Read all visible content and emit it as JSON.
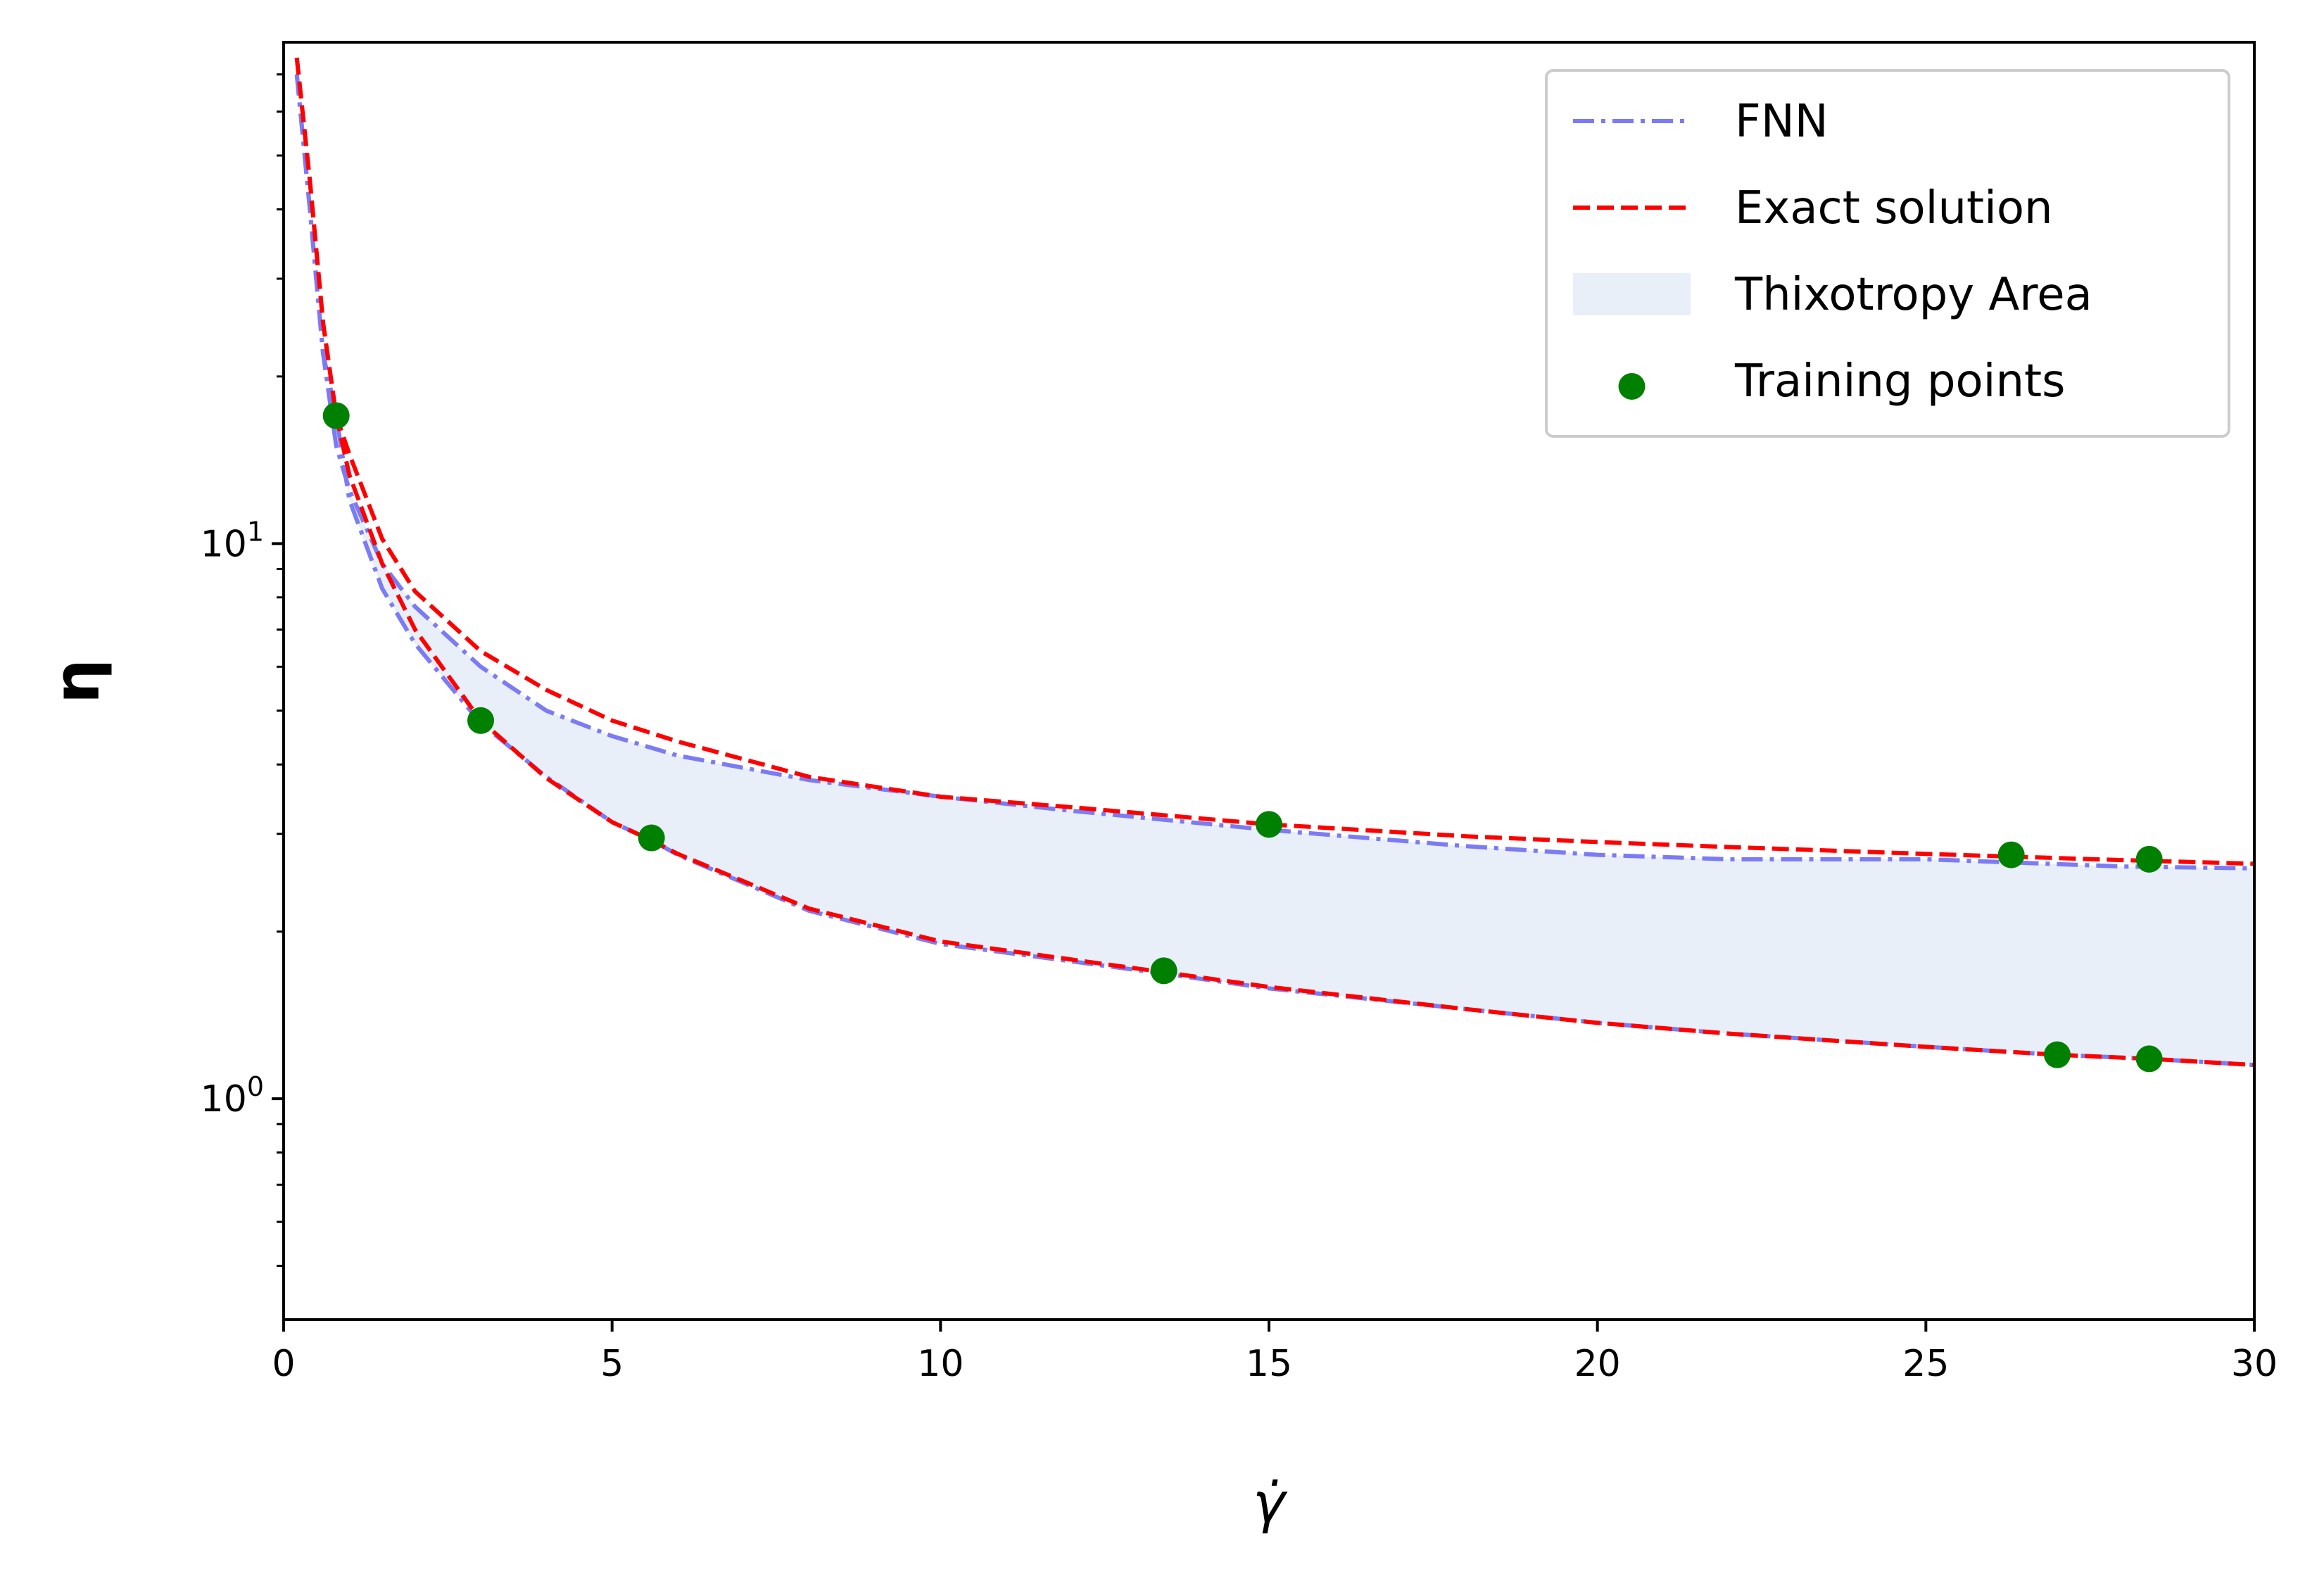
{
  "chart_data": {
    "type": "line",
    "xlabel": "γ̇",
    "ylabel": "η",
    "xlim": [
      0,
      30
    ],
    "ylim": [
      0.4,
      80
    ],
    "yscale": "log",
    "x_ticks": [
      "0",
      "5",
      "10",
      "15",
      "20",
      "25",
      "30"
    ],
    "y_ticks": [
      {
        "base": "10",
        "exp": "1"
      },
      {
        "base": "10",
        "exp": "0"
      }
    ],
    "grid": false,
    "legend_position": "top-right",
    "legend": [
      {
        "label": "FNN",
        "style": "dashdot",
        "color": "#7b7bf5"
      },
      {
        "label": "Exact solution",
        "style": "dashed",
        "color": "#ff0000"
      },
      {
        "label": "Thixotropy Area",
        "style": "fill",
        "color": "#e8eff8"
      },
      {
        "label": "Training points",
        "style": "marker",
        "color": "#008000"
      }
    ],
    "series": [
      {
        "name": "FNN",
        "branch": "upper",
        "x": [
          0.2,
          0.4,
          0.6,
          0.8,
          1.0,
          1.5,
          2,
          3,
          4,
          5,
          6,
          8,
          10,
          12,
          15,
          18,
          20,
          22,
          25,
          28,
          30
        ],
        "y": [
          70,
          40,
          22,
          15,
          12.5,
          9.2,
          7.7,
          6.0,
          5.0,
          4.5,
          4.15,
          3.75,
          3.5,
          3.3,
          3.05,
          2.85,
          2.75,
          2.7,
          2.7,
          2.62,
          2.6
        ]
      },
      {
        "name": "FNN",
        "branch": "lower",
        "x": [
          0.2,
          0.4,
          0.6,
          0.8,
          1.0,
          1.5,
          2,
          3,
          4,
          5,
          5.6,
          6,
          8,
          10,
          13.4,
          15,
          18,
          20,
          22,
          25,
          27,
          28.4,
          30
        ],
        "y": [
          70,
          40,
          22,
          17,
          12,
          8.3,
          6.6,
          4.75,
          3.8,
          3.15,
          2.92,
          2.75,
          2.18,
          1.9,
          1.68,
          1.58,
          1.45,
          1.37,
          1.31,
          1.24,
          1.2,
          1.18,
          1.15
        ]
      },
      {
        "name": "Exact solution",
        "branch": "upper",
        "x": [
          0.2,
          0.4,
          0.6,
          0.8,
          1.0,
          1.5,
          2,
          3,
          4,
          5,
          6,
          8,
          10,
          12,
          15,
          18,
          20,
          22,
          25,
          28,
          30
        ],
        "y": [
          75,
          45,
          25,
          17,
          14.5,
          10.2,
          8.2,
          6.4,
          5.45,
          4.8,
          4.4,
          3.8,
          3.5,
          3.35,
          3.12,
          2.97,
          2.9,
          2.84,
          2.76,
          2.69,
          2.65
        ]
      },
      {
        "name": "Exact solution",
        "branch": "lower",
        "x": [
          0.2,
          0.4,
          0.6,
          0.8,
          1.0,
          1.5,
          2,
          3,
          4,
          5,
          5.6,
          6,
          8,
          10,
          13.4,
          15,
          18,
          20,
          22,
          25,
          27,
          28.4,
          30
        ],
        "y": [
          75,
          45,
          25,
          17,
          13.3,
          9.2,
          7.0,
          4.8,
          3.78,
          3.15,
          2.92,
          2.76,
          2.2,
          1.92,
          1.69,
          1.59,
          1.45,
          1.37,
          1.31,
          1.24,
          1.2,
          1.18,
          1.15
        ]
      }
    ],
    "fill_between": {
      "name": "Thixotropy Area",
      "x": [
        0.8,
        1.0,
        1.5,
        2,
        3,
        4,
        5,
        6,
        8,
        10,
        12,
        15,
        18,
        20,
        22,
        25,
        28,
        30
      ],
      "upper": [
        17,
        12.5,
        9.2,
        7.7,
        6.0,
        5.0,
        4.5,
        4.15,
        3.75,
        3.5,
        3.3,
        3.05,
        2.85,
        2.75,
        2.7,
        2.7,
        2.62,
        2.6
      ],
      "lower": [
        17,
        12,
        8.3,
        6.6,
        4.75,
        3.8,
        3.15,
        2.75,
        2.18,
        1.9,
        1.78,
        1.58,
        1.45,
        1.37,
        1.31,
        1.24,
        1.19,
        1.15
      ]
    },
    "training_points": {
      "name": "Training points",
      "x": [
        0.8,
        3.0,
        5.6,
        13.4,
        15.0,
        26.3,
        27.0,
        28.4,
        28.4
      ],
      "y": [
        17.0,
        4.8,
        2.95,
        1.7,
        3.12,
        2.75,
        1.2,
        2.7,
        1.18
      ]
    }
  }
}
